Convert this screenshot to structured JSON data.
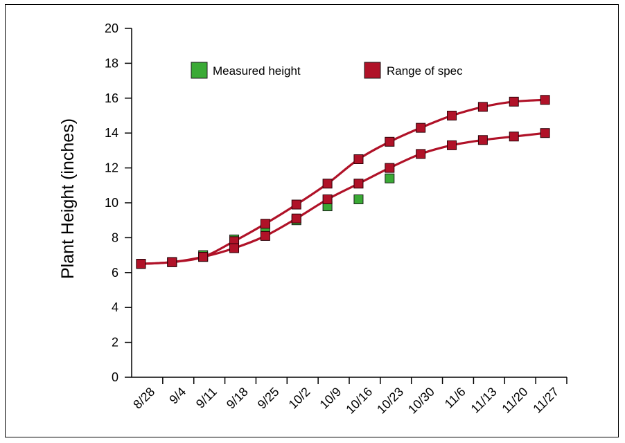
{
  "chart_data": {
    "type": "line",
    "ylabel": "Plant Height (inches)",
    "xlabel": "",
    "ylim": [
      0,
      20
    ],
    "yticks": [
      0,
      2,
      4,
      6,
      8,
      10,
      12,
      14,
      16,
      18,
      20
    ],
    "categories": [
      "8/28",
      "9/4",
      "9/11",
      "9/18",
      "9/25",
      "10/2",
      "10/9",
      "10/16",
      "10/23",
      "10/30",
      "11/6",
      "11/13",
      "11/20",
      "11/27"
    ],
    "legend": {
      "position": "top"
    },
    "grid": false,
    "series": [
      {
        "name": "Measured height",
        "kind": "points",
        "color": "#3aaa35",
        "points": [
          {
            "x": 0.3,
            "y": 6.5
          },
          {
            "x": 1.3,
            "y": 6.6
          },
          {
            "x": 2.3,
            "y": 7.0
          },
          {
            "x": 3.3,
            "y": 7.9
          },
          {
            "x": 4.3,
            "y": 8.5
          },
          {
            "x": 5.3,
            "y": 9.0
          },
          {
            "x": 6.3,
            "y": 9.8
          },
          {
            "x": 7.3,
            "y": 10.2
          },
          {
            "x": 8.3,
            "y": 11.4
          }
        ]
      },
      {
        "name": "Range of spec",
        "kind": "band",
        "color": "#b01228",
        "upper": [
          {
            "x": 0.3,
            "y": 6.5
          },
          {
            "x": 1.3,
            "y": 6.6
          },
          {
            "x": 2.3,
            "y": 6.9
          },
          {
            "x": 3.3,
            "y": 7.8
          },
          {
            "x": 4.3,
            "y": 8.8
          },
          {
            "x": 5.3,
            "y": 9.9
          },
          {
            "x": 6.3,
            "y": 11.1
          },
          {
            "x": 7.3,
            "y": 12.5
          },
          {
            "x": 8.3,
            "y": 13.5
          },
          {
            "x": 9.3,
            "y": 14.3
          },
          {
            "x": 10.3,
            "y": 15.0
          },
          {
            "x": 11.3,
            "y": 15.5
          },
          {
            "x": 12.3,
            "y": 15.8
          },
          {
            "x": 13.3,
            "y": 15.9
          }
        ],
        "lower": [
          {
            "x": 0.3,
            "y": 6.5
          },
          {
            "x": 1.3,
            "y": 6.6
          },
          {
            "x": 2.3,
            "y": 6.9
          },
          {
            "x": 3.3,
            "y": 7.4
          },
          {
            "x": 4.3,
            "y": 8.1
          },
          {
            "x": 5.3,
            "y": 9.1
          },
          {
            "x": 6.3,
            "y": 10.2
          },
          {
            "x": 7.3,
            "y": 11.1
          },
          {
            "x": 8.3,
            "y": 12.0
          },
          {
            "x": 9.3,
            "y": 12.8
          },
          {
            "x": 10.3,
            "y": 13.3
          },
          {
            "x": 11.3,
            "y": 13.6
          },
          {
            "x": 12.3,
            "y": 13.8
          },
          {
            "x": 13.3,
            "y": 14.0
          }
        ]
      }
    ]
  }
}
